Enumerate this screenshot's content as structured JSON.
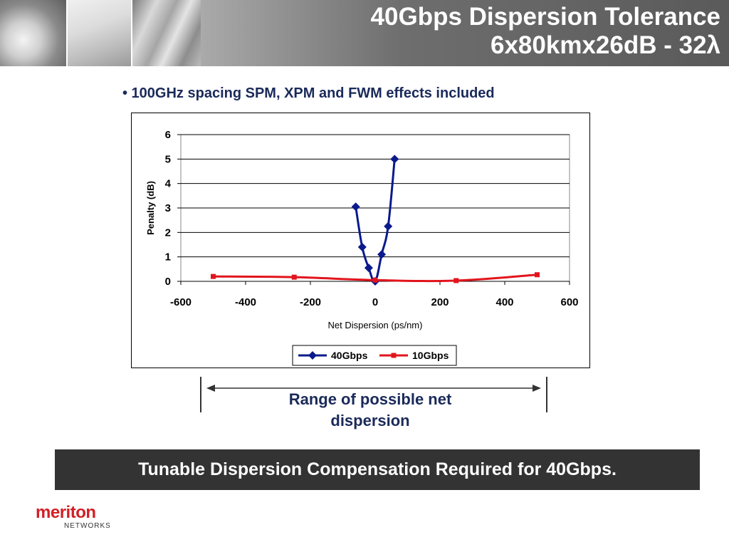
{
  "header": {
    "title_line1": "40Gbps Dispersion Tolerance",
    "title_line2": "6x80kmx26dB - 32λ"
  },
  "bullet": "• 100GHz spacing SPM, XPM and FWM effects included",
  "range": {
    "label_line1": "Range of possible net",
    "label_line2": "dispersion"
  },
  "banner": "Tunable Dispersion Compensation Required for 40Gbps.",
  "logo": {
    "word": "meriton",
    "sub": "NETWORKS"
  },
  "colors": {
    "series_40g": "#0a1a8c",
    "series_10g": "#e2141c",
    "banner_bg": "#333333",
    "logo_red": "#d21f24"
  },
  "chart_data": {
    "type": "line",
    "xlabel": "Net Dispersion (ps/nm)",
    "ylabel": "Penalty (dB)",
    "xlim": [
      -600,
      600
    ],
    "ylim": [
      0,
      6
    ],
    "xticks": [
      -600,
      -400,
      -200,
      0,
      200,
      400,
      600
    ],
    "yticks": [
      0,
      1,
      2,
      3,
      4,
      5,
      6
    ],
    "grid": "horizontal",
    "legend_position": "bottom",
    "series": [
      {
        "name": "40Gbps",
        "color": "#0a1a8c",
        "marker": "diamond",
        "x": [
          -60,
          -40,
          -20,
          0,
          20,
          40,
          60
        ],
        "y": [
          3.05,
          1.4,
          0.55,
          0.0,
          1.1,
          2.25,
          5.0
        ]
      },
      {
        "name": "10Gbps",
        "color": "#e2141c",
        "marker": "square",
        "x": [
          -500,
          -250,
          0,
          250,
          500
        ],
        "y": [
          0.2,
          0.17,
          0.05,
          0.03,
          0.27
        ]
      }
    ]
  }
}
